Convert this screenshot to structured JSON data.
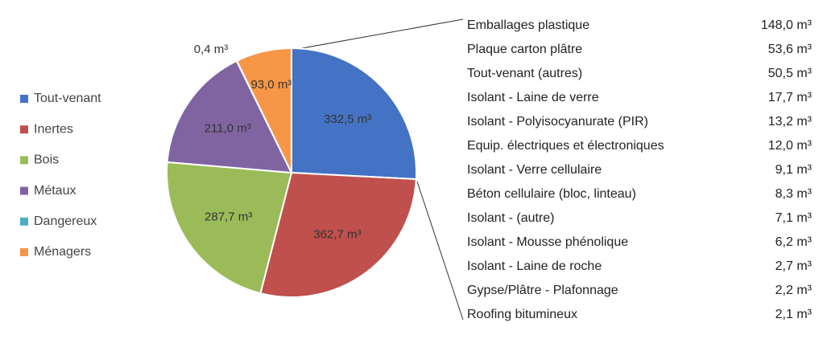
{
  "chart_data": {
    "type": "pie",
    "categories": [
      "Tout-venant",
      "Inertes",
      "Bois",
      "Métaux",
      "Dangereux",
      "Ménagers"
    ],
    "values": [
      332.5,
      362.7,
      287.7,
      211.0,
      0.4,
      93.0
    ],
    "value_labels": [
      "332,5 m³",
      "362,7 m³",
      "287,7 m³",
      "211,0 m³",
      "0,4 m³",
      "93,0 m³"
    ],
    "colors": [
      "#4472c4",
      "#c0504d",
      "#9bbb59",
      "#8064a2",
      "#4bacc6",
      "#f79646"
    ],
    "legend": "left",
    "breakdown": {
      "categories": [
        "Emballages plastique",
        "Plaque carton plâtre",
        "Tout-venant (autres)",
        "Isolant - Laine de verre",
        "Isolant - Polyisocyanurate (PIR)",
        "Equip. électriques et électroniques",
        "Isolant - Verre cellulaire",
        "Béton cellulaire (bloc, linteau)",
        "Isolant - (autre)",
        "Isolant - Mousse phénolique",
        "Isolant - Laine de roche",
        "Gypse/Plâtre - Plafonnage",
        "Roofing bitumineux"
      ],
      "values": [
        148.0,
        53.6,
        50.5,
        17.7,
        13.2,
        12.0,
        9.1,
        8.3,
        7.1,
        6.2,
        2.7,
        2.2,
        2.1
      ],
      "value_labels": [
        "148,0 m³",
        "53,6 m³",
        "50,5 m³",
        "17,7 m³",
        "13,2 m³",
        "12,0 m³",
        "9,1 m³",
        "8,3 m³",
        "7,1 m³",
        "6,2 m³",
        "2,7 m³",
        "2,2 m³",
        "2,1 m³"
      ]
    }
  }
}
